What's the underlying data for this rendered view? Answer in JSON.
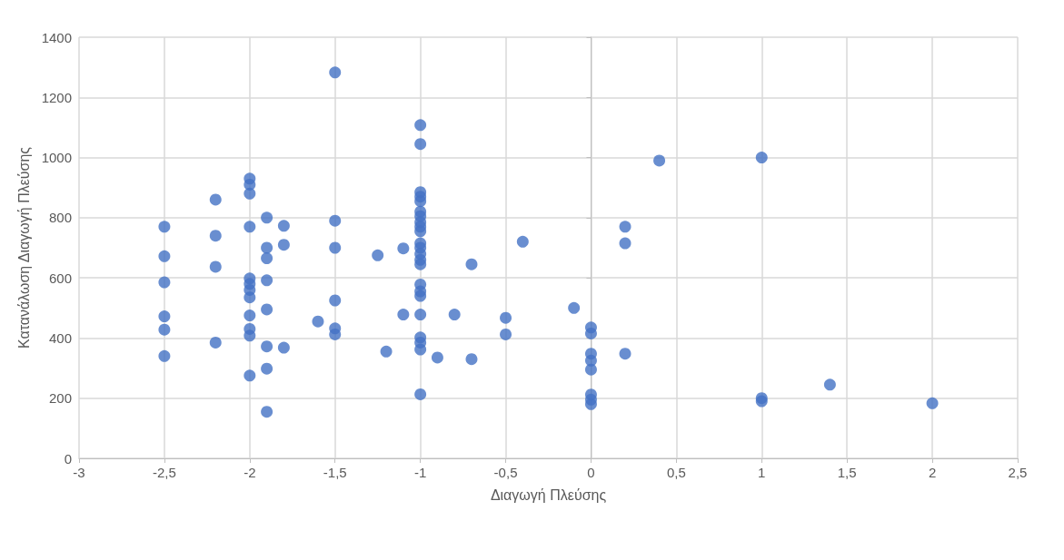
{
  "chart_data": {
    "type": "scatter",
    "xlabel": "Διαγωγή Πλεύσης",
    "ylabel": "Κατανάλωση Διαγωγή Πλεύσης",
    "x": [
      -2.5,
      -2.5,
      -2.5,
      -2.5,
      -2.5,
      -2.5,
      -2.2,
      -2.2,
      -2.2,
      -2.2,
      -2,
      -2,
      -2,
      -2,
      -2,
      -2,
      -2,
      -2,
      -2,
      -2,
      -2,
      -2,
      -1.9,
      -1.9,
      -1.9,
      -1.9,
      -1.9,
      -1.9,
      -1.9,
      -1.9,
      -1.8,
      -1.8,
      -1.8,
      -1.6,
      -1.5,
      -1.5,
      -1.5,
      -1.5,
      -1.5,
      -1.5,
      -1.25,
      -1.2,
      -1.1,
      -1.1,
      -1,
      -1,
      -1,
      -1,
      -1,
      -1,
      -1,
      -1,
      -1,
      -1,
      -1,
      -1,
      -1,
      -1,
      -1,
      -1,
      -1,
      -1,
      -1,
      -1,
      -1,
      -1,
      -1,
      -0.9,
      -0.8,
      -0.7,
      -0.7,
      -0.5,
      -0.5,
      -0.4,
      -0.1,
      0,
      0,
      0,
      0,
      0,
      0,
      0,
      0,
      0.2,
      0.2,
      0.2,
      0.4,
      1,
      1,
      1,
      1.4,
      2
    ],
    "values": [
      770,
      672,
      585,
      472,
      428,
      340,
      860,
      740,
      637,
      385,
      930,
      910,
      880,
      770,
      598,
      580,
      560,
      535,
      475,
      430,
      408,
      275,
      800,
      700,
      665,
      592,
      495,
      372,
      298,
      155,
      773,
      710,
      368,
      455,
      1283,
      790,
      700,
      525,
      432,
      412,
      675,
      355,
      698,
      478,
      1108,
      1045,
      885,
      870,
      855,
      820,
      805,
      785,
      770,
      755,
      715,
      700,
      680,
      660,
      645,
      578,
      555,
      540,
      478,
      402,
      385,
      362,
      213,
      335,
      478,
      645,
      330,
      467,
      412,
      720,
      500,
      435,
      415,
      348,
      325,
      295,
      212,
      195,
      180,
      770,
      715,
      348,
      990,
      1000,
      200,
      190,
      245,
      183
    ],
    "color": "#4472c4",
    "marker": "circle",
    "grid": true,
    "xlim": [
      -3,
      2.5
    ],
    "xticks": [
      -3,
      {
        "value": -2.5,
        "label": "-2,5"
      },
      -2,
      {
        "value": -1.5,
        "label": "-1,5"
      },
      -1,
      {
        "value": -0.5,
        "label": "-0,5"
      },
      0,
      {
        "value": 0.5,
        "label": "0,5"
      },
      1,
      {
        "value": 1.5,
        "label": "1,5"
      },
      2,
      {
        "value": 2.5,
        "label": "2,5"
      }
    ],
    "ylim": [
      0,
      1400
    ],
    "yticks": [
      0,
      200,
      400,
      600,
      800,
      1000,
      1200,
      1400
    ]
  }
}
